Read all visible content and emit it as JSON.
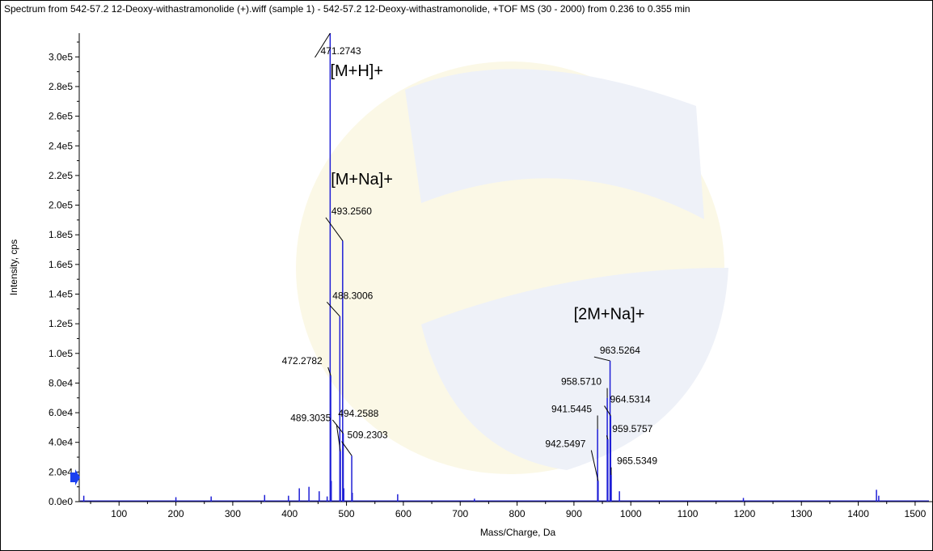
{
  "window": {
    "title": "Spectrum from 542-57.2 12-Deoxy-withastramonolide (+).wiff (sample 1) - 542-57.2 12-Deoxy-withastramonolide, +TOF MS (30 - 2000) from 0.236 to 0.355 min"
  },
  "colors": {
    "trace": "#1f1fd6",
    "axis": "#000000",
    "watermark_blue": "#eef1f8",
    "watermark_yellow": "#fbf8e6",
    "marker": "#1b3ff0"
  },
  "chart_data": {
    "type": "line",
    "xlabel": "Mass/Charge, Da",
    "ylabel": "Intensity, cps",
    "xlim": [
      30,
      1530
    ],
    "ylim": [
      0,
      316000
    ],
    "x_ticks": [
      100,
      200,
      300,
      400,
      500,
      600,
      700,
      800,
      900,
      1000,
      1100,
      1200,
      1300,
      1400,
      1500
    ],
    "y_ticks": [
      {
        "value": 0,
        "label": "0.0e0"
      },
      {
        "value": 20000,
        "label": "2.0e4"
      },
      {
        "value": 40000,
        "label": "4.0e4"
      },
      {
        "value": 60000,
        "label": "6.0e4"
      },
      {
        "value": 80000,
        "label": "8.0e4"
      },
      {
        "value": 100000,
        "label": "1.0e5"
      },
      {
        "value": 120000,
        "label": "1.2e5"
      },
      {
        "value": 140000,
        "label": "1.4e5"
      },
      {
        "value": 160000,
        "label": "1.6e5"
      },
      {
        "value": 180000,
        "label": "1.8e5"
      },
      {
        "value": 200000,
        "label": "2.0e5"
      },
      {
        "value": 220000,
        "label": "2.2e5"
      },
      {
        "value": 240000,
        "label": "2.4e5"
      },
      {
        "value": 260000,
        "label": "2.6e5"
      },
      {
        "value": 280000,
        "label": "2.8e5"
      },
      {
        "value": 300000,
        "label": "3.0e5"
      }
    ],
    "peaks": [
      {
        "mz": 38,
        "intensity": 4000
      },
      {
        "mz": 200,
        "intensity": 3000
      },
      {
        "mz": 262,
        "intensity": 3500
      },
      {
        "mz": 356,
        "intensity": 4500
      },
      {
        "mz": 398,
        "intensity": 4000
      },
      {
        "mz": 417,
        "intensity": 9000
      },
      {
        "mz": 434,
        "intensity": 10000
      },
      {
        "mz": 452,
        "intensity": 7000
      },
      {
        "mz": 466,
        "intensity": 3500
      },
      {
        "mz": 471.2743,
        "intensity": 316000
      },
      {
        "mz": 472.2782,
        "intensity": 85000
      },
      {
        "mz": 473.2,
        "intensity": 14000
      },
      {
        "mz": 488.3006,
        "intensity": 125000
      },
      {
        "mz": 489.3035,
        "intensity": 34000
      },
      {
        "mz": 493.256,
        "intensity": 176000
      },
      {
        "mz": 494.2588,
        "intensity": 46000
      },
      {
        "mz": 495.3,
        "intensity": 9000
      },
      {
        "mz": 509.2303,
        "intensity": 31000
      },
      {
        "mz": 510.2,
        "intensity": 6000
      },
      {
        "mz": 590,
        "intensity": 5000
      },
      {
        "mz": 725,
        "intensity": 2000
      },
      {
        "mz": 941.5445,
        "intensity": 49000
      },
      {
        "mz": 942.5497,
        "intensity": 14000
      },
      {
        "mz": 958.571,
        "intensity": 70000
      },
      {
        "mz": 959.5757,
        "intensity": 42000
      },
      {
        "mz": 963.5264,
        "intensity": 95000
      },
      {
        "mz": 964.5314,
        "intensity": 58000
      },
      {
        "mz": 965.5349,
        "intensity": 18000
      },
      {
        "mz": 980,
        "intensity": 7000
      },
      {
        "mz": 1198,
        "intensity": 2500
      },
      {
        "mz": 1432,
        "intensity": 8000
      },
      {
        "mz": 1436,
        "intensity": 4000
      }
    ],
    "peak_labels": [
      {
        "text": "471.2743",
        "mz": 471.2743,
        "intensity": 316000,
        "label_mz": 490,
        "label_intensity": 304000
      },
      {
        "text": "493.2560",
        "mz": 493.256,
        "intensity": 176000,
        "label_mz": 509,
        "label_intensity": 196000
      },
      {
        "text": "488.3006",
        "mz": 488.3006,
        "intensity": 125000,
        "label_mz": 511,
        "label_intensity": 139000
      },
      {
        "text": "472.2782",
        "mz": 472.2782,
        "intensity": 85000,
        "label_mz": 422,
        "label_intensity": 95000
      },
      {
        "text": "489.3035",
        "mz": 489.3035,
        "intensity": 34000,
        "label_mz": 437,
        "label_intensity": 56500
      },
      {
        "text": "494.2588",
        "mz": 494.2588,
        "intensity": 46000,
        "label_mz": 521,
        "label_intensity": 59500
      },
      {
        "text": "509.2303",
        "mz": 509.2303,
        "intensity": 31000,
        "label_mz": 537,
        "label_intensity": 45000
      },
      {
        "text": "963.5264",
        "mz": 963.5264,
        "intensity": 95000,
        "label_mz": 981,
        "label_intensity": 102000
      },
      {
        "text": "958.5710",
        "mz": 958.571,
        "intensity": 70000,
        "label_mz": 913,
        "label_intensity": 81000
      },
      {
        "text": "964.5314",
        "mz": 964.5314,
        "intensity": 58000,
        "label_mz": 999,
        "label_intensity": 69000
      },
      {
        "text": "941.5445",
        "mz": 941.5445,
        "intensity": 49000,
        "label_mz": 896,
        "label_intensity": 62500
      },
      {
        "text": "959.5757",
        "mz": 959.5757,
        "intensity": 42000,
        "label_mz": 1003,
        "label_intensity": 49000
      },
      {
        "text": "942.5497",
        "mz": 942.5497,
        "intensity": 14000,
        "label_mz": 885,
        "label_intensity": 39000
      },
      {
        "text": "965.5349",
        "mz": 965.5349,
        "intensity": 18000,
        "label_mz": 1011,
        "label_intensity": 27500
      }
    ],
    "ion_labels": [
      {
        "text": "[M+H]+",
        "mz": 518,
        "intensity": 287000
      },
      {
        "text": "[M+Na]+",
        "mz": 527,
        "intensity": 214000
      },
      {
        "text": "[2M+Na]+",
        "mz": 962,
        "intensity": 123000
      }
    ]
  }
}
